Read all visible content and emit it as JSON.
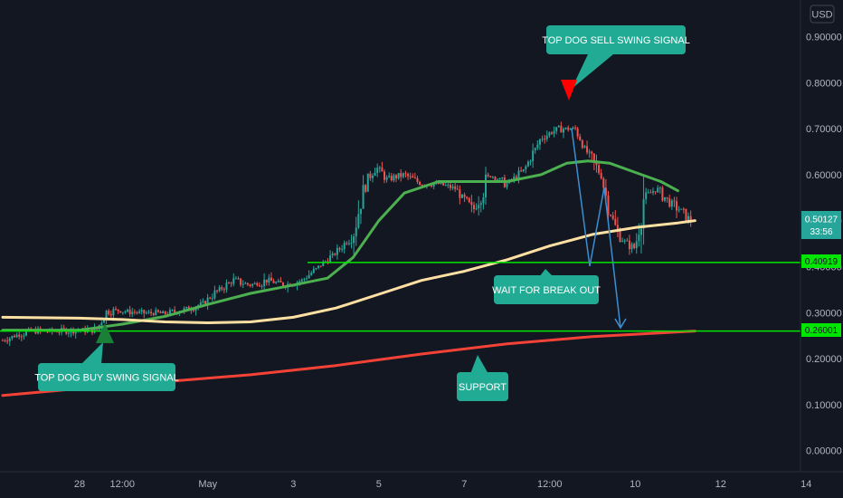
{
  "currency_button": "USD",
  "chart_data": {
    "type": "candlestick",
    "title": "",
    "y_axis": {
      "ticks": [
        "0.90000",
        "0.80000",
        "0.70000",
        "0.60000",
        "0.50000",
        "0.40000",
        "0.30000",
        "0.20000",
        "0.10000",
        "0.00000"
      ],
      "tick_values": [
        0.9,
        0.8,
        0.7,
        0.6,
        0.5,
        0.4,
        0.3,
        0.2,
        0.1,
        0.0
      ],
      "ylim": [
        -0.05,
        0.93
      ]
    },
    "x_axis": {
      "ticks": [
        "28",
        "12:00",
        "May",
        "3",
        "5",
        "7",
        "12:00",
        "10",
        "12",
        "14"
      ],
      "tick_values": [
        0,
        0.5,
        1.5,
        2.5,
        3.5,
        4.5,
        5.5,
        6.5,
        7.5,
        8.5
      ]
    },
    "current_price": {
      "value": "0.50127",
      "countdown": "33:56",
      "color": "#26a69a"
    },
    "horizontal_levels": [
      {
        "label": "0.40919",
        "value": 0.40919,
        "color": "#00e600"
      },
      {
        "label": "0.26001",
        "value": 0.26001,
        "color": "#00e600"
      }
    ],
    "price_path": [
      [
        -0.9,
        0.24
      ],
      [
        -0.6,
        0.26
      ],
      [
        -0.3,
        0.26
      ],
      [
        0,
        0.262
      ],
      [
        0.2,
        0.262
      ],
      [
        0.3,
        0.3
      ],
      [
        0.45,
        0.305
      ],
      [
        0.7,
        0.3
      ],
      [
        1.0,
        0.298
      ],
      [
        1.2,
        0.305
      ],
      [
        1.45,
        0.32
      ],
      [
        1.6,
        0.345
      ],
      [
        1.8,
        0.37
      ],
      [
        2.0,
        0.36
      ],
      [
        2.2,
        0.37
      ],
      [
        2.4,
        0.36
      ],
      [
        2.6,
        0.37
      ],
      [
        2.8,
        0.4
      ],
      [
        3.0,
        0.43
      ],
      [
        3.2,
        0.47
      ],
      [
        3.3,
        0.55
      ],
      [
        3.45,
        0.62
      ],
      [
        3.6,
        0.59
      ],
      [
        3.8,
        0.6
      ],
      [
        4.0,
        0.58
      ],
      [
        4.2,
        0.58
      ],
      [
        4.4,
        0.57
      ],
      [
        4.6,
        0.52
      ],
      [
        4.8,
        0.6
      ],
      [
        5.0,
        0.58
      ],
      [
        5.2,
        0.61
      ],
      [
        5.4,
        0.68
      ],
      [
        5.6,
        0.7
      ],
      [
        5.8,
        0.7
      ],
      [
        5.9,
        0.66
      ],
      [
        6.1,
        0.6
      ],
      [
        6.2,
        0.52
      ],
      [
        6.3,
        0.47
      ],
      [
        6.4,
        0.45
      ],
      [
        6.5,
        0.44
      ],
      [
        6.6,
        0.55
      ],
      [
        6.75,
        0.57
      ],
      [
        6.9,
        0.54
      ],
      [
        7.05,
        0.52
      ],
      [
        7.15,
        0.5
      ]
    ],
    "series": [
      {
        "name": "",
        "color": "#4caf50",
        "points": [
          [
            -0.9,
            0.262
          ],
          [
            0,
            0.262
          ],
          [
            0.5,
            0.275
          ],
          [
            1.0,
            0.292
          ],
          [
            1.5,
            0.318
          ],
          [
            2.0,
            0.342
          ],
          [
            2.5,
            0.36
          ],
          [
            2.9,
            0.375
          ],
          [
            3.2,
            0.42
          ],
          [
            3.5,
            0.5
          ],
          [
            3.8,
            0.56
          ],
          [
            4.2,
            0.585
          ],
          [
            4.6,
            0.585
          ],
          [
            5.0,
            0.585
          ],
          [
            5.4,
            0.6
          ],
          [
            5.7,
            0.625
          ],
          [
            5.95,
            0.63
          ],
          [
            6.2,
            0.625
          ],
          [
            6.5,
            0.605
          ],
          [
            6.8,
            0.585
          ],
          [
            7.0,
            0.565
          ]
        ]
      },
      {
        "name": "",
        "color": "#ffe0a3",
        "points": [
          [
            -0.9,
            0.29
          ],
          [
            0,
            0.288
          ],
          [
            0.5,
            0.285
          ],
          [
            1.0,
            0.28
          ],
          [
            1.5,
            0.278
          ],
          [
            2.0,
            0.28
          ],
          [
            2.5,
            0.29
          ],
          [
            3.0,
            0.31
          ],
          [
            3.5,
            0.34
          ],
          [
            4.0,
            0.37
          ],
          [
            4.5,
            0.39
          ],
          [
            5.0,
            0.415
          ],
          [
            5.5,
            0.445
          ],
          [
            6.0,
            0.47
          ],
          [
            6.5,
            0.485
          ],
          [
            7.0,
            0.495
          ],
          [
            7.2,
            0.5
          ]
        ]
      },
      {
        "name": "",
        "color": "#f44336",
        "points": [
          [
            -0.9,
            0.12
          ],
          [
            0,
            0.135
          ],
          [
            1,
            0.15
          ],
          [
            2,
            0.165
          ],
          [
            3,
            0.185
          ],
          [
            4,
            0.21
          ],
          [
            5,
            0.232
          ],
          [
            6,
            0.248
          ],
          [
            7,
            0.258
          ],
          [
            7.2,
            0.26
          ]
        ]
      }
    ],
    "annotations": [
      {
        "text": "TOP DOG SELL SWING SIGNAL",
        "marker": "sell-triangle",
        "marker_color": "#ff0000",
        "box_color": "#22ab94"
      },
      {
        "text": "TOP DOG BUY SWING SIGNAL",
        "marker": "buy-triangle",
        "marker_color": "#1a7f37",
        "box_color": "#22ab94"
      },
      {
        "text": "WAIT FOR BREAK OUT",
        "box_color": "#22ab94"
      },
      {
        "text": "SUPPORT",
        "box_color": "#22ab94"
      }
    ],
    "projection_color": "#3a8fd1",
    "grid": false,
    "background": "#131722"
  }
}
